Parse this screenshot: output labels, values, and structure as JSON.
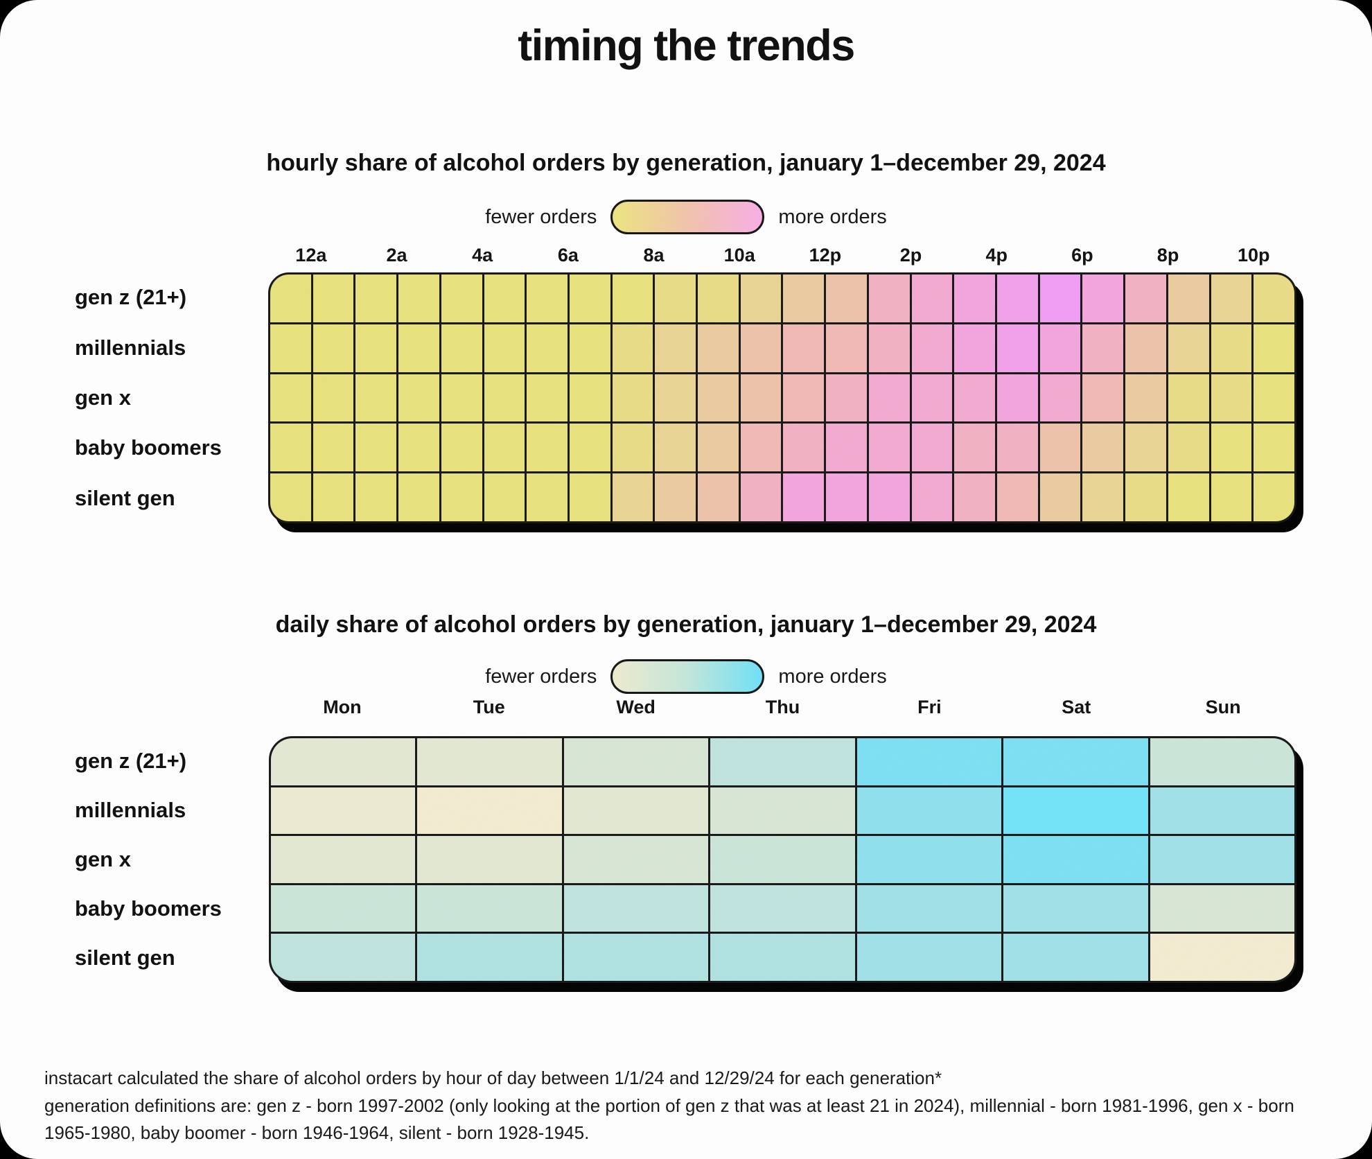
{
  "page": {
    "title": "timing the trends",
    "background_color": "#000000",
    "card_color": "#ffffff"
  },
  "chart_data": [
    {
      "id": "hourly",
      "type": "heatmap",
      "subtitle": "hourly share of alcohol orders by generation, january 1–december 29, 2024",
      "legend": {
        "left_label": "fewer orders",
        "right_label": "more orders",
        "gradient": [
          "#ece57f",
          "#f1c3ab",
          "#f9aee6"
        ]
      },
      "col_tick_labels": [
        "12a",
        "2a",
        "4a",
        "6a",
        "8a",
        "10a",
        "12p",
        "2p",
        "4p",
        "6p",
        "8p",
        "10p"
      ],
      "n_columns": 24,
      "rows": [
        "gen z (21+)",
        "millennials",
        "gen x",
        "baby boomers",
        "silent gen"
      ],
      "color_scale_low_to_high": [
        "#e7e27c",
        "#e8dc86",
        "#e9d493",
        "#ebcb9f",
        "#edc2aa",
        "#f0b9b4",
        "#f2b1c2",
        "#f3aad0",
        "#f3a5de",
        "#f2a0ea",
        "#f09df4"
      ],
      "cells": [
        [
          "#e7e27c",
          "#e7e27c",
          "#e7e27c",
          "#e7e27c",
          "#e7e27c",
          "#e7e27c",
          "#e7e27c",
          "#e7e27c",
          "#e7e27c",
          "#e8dc86",
          "#e8dc86",
          "#e9d493",
          "#ebcb9f",
          "#edc2aa",
          "#f2b1c2",
          "#f3aad0",
          "#f3a5de",
          "#f2a0ea",
          "#f09df4",
          "#f3a5de",
          "#f2b1c2",
          "#ebcb9f",
          "#e9d493",
          "#e8dc86"
        ],
        [
          "#e7e27c",
          "#e7e27c",
          "#e7e27c",
          "#e7e27c",
          "#e7e27c",
          "#e7e27c",
          "#e7e27c",
          "#e7e27c",
          "#e8dc86",
          "#e9d493",
          "#ebcb9f",
          "#edc2aa",
          "#f0b9b4",
          "#f0b9b4",
          "#f2b1c2",
          "#f3aad0",
          "#f3a5de",
          "#f2a0ea",
          "#f3a5de",
          "#f2b1c2",
          "#edc2aa",
          "#e9d493",
          "#e8dc86",
          "#e7e27c"
        ],
        [
          "#e7e27c",
          "#e7e27c",
          "#e7e27c",
          "#e7e27c",
          "#e7e27c",
          "#e7e27c",
          "#e7e27c",
          "#e7e27c",
          "#e8dc86",
          "#e9d493",
          "#ebcb9f",
          "#edc2aa",
          "#f0b9b4",
          "#f2b1c2",
          "#f3aad0",
          "#f3aad0",
          "#f3aad0",
          "#f3a5de",
          "#f3aad0",
          "#f0b9b4",
          "#ebcb9f",
          "#e8dc86",
          "#e8dc86",
          "#e7e27c"
        ],
        [
          "#e7e27c",
          "#e7e27c",
          "#e7e27c",
          "#e7e27c",
          "#e7e27c",
          "#e7e27c",
          "#e7e27c",
          "#e7e27c",
          "#e8dc86",
          "#e9d493",
          "#ebcb9f",
          "#f0b9b4",
          "#f2b1c2",
          "#f3aad0",
          "#f3aad0",
          "#f3aad0",
          "#f2b1c2",
          "#f2b1c2",
          "#edc2aa",
          "#ebcb9f",
          "#e9d493",
          "#e8dc86",
          "#e7e27c",
          "#e7e27c"
        ],
        [
          "#e7e27c",
          "#e7e27c",
          "#e7e27c",
          "#e7e27c",
          "#e7e27c",
          "#e7e27c",
          "#e7e27c",
          "#e7e27c",
          "#e9d493",
          "#ebcb9f",
          "#edc2aa",
          "#f2b1c2",
          "#f3a5de",
          "#f3a5de",
          "#f3a5de",
          "#f3aad0",
          "#f2b1c2",
          "#f0b9b4",
          "#ebcb9f",
          "#e9d493",
          "#e8dc86",
          "#e7e27c",
          "#e7e27c",
          "#e7e27c"
        ]
      ]
    },
    {
      "id": "daily",
      "type": "heatmap",
      "subtitle": "daily share of alcohol orders by generation, january 1–december 29, 2024",
      "legend": {
        "left_label": "fewer orders",
        "right_label": "more orders",
        "gradient": [
          "#eeebce",
          "#c3e6da",
          "#6ee1f7"
        ]
      },
      "col_tick_labels": [
        "Mon",
        "Tue",
        "Wed",
        "Thu",
        "Fri",
        "Sat",
        "Sun"
      ],
      "n_columns": 7,
      "rows": [
        "gen z (21+)",
        "millennials",
        "gen x",
        "baby boomers",
        "silent gen"
      ],
      "color_scale_low_to_high": [
        "#f3ecd1",
        "#ebead2",
        "#e3e8d3",
        "#d8e6d5",
        "#cbe5d9",
        "#bfe3de",
        "#b0e2e2",
        "#9fe1e7",
        "#8fe0ed",
        "#7de0f3",
        "#72e3f8"
      ],
      "cells": [
        [
          "#e3e8d3",
          "#e3e8d3",
          "#d8e6d5",
          "#bfe3de",
          "#7de0f3",
          "#7de0f3",
          "#cbe5d9"
        ],
        [
          "#ebead2",
          "#f3ecd1",
          "#e3e8d3",
          "#d8e6d5",
          "#8fe0ed",
          "#72e3f8",
          "#9fe1e7"
        ],
        [
          "#e3e8d3",
          "#e3e8d3",
          "#d8e6d5",
          "#cbe5d9",
          "#8fe0ed",
          "#7de0f3",
          "#9fe1e7"
        ],
        [
          "#cbe5d9",
          "#cbe5d9",
          "#bfe3de",
          "#bfe3de",
          "#9fe1e7",
          "#9fe1e7",
          "#d8e6d5"
        ],
        [
          "#bfe3de",
          "#b0e2e2",
          "#b0e2e2",
          "#b0e2e2",
          "#9fe1e7",
          "#9fe1e7",
          "#f3ecd1"
        ]
      ]
    }
  ],
  "footnote": {
    "line1": "instacart calculated the share of alcohol orders by hour of day between 1/1/24 and 12/29/24 for each generation*",
    "line2": "generation definitions are: gen z - born 1997-2002 (only looking at the portion of gen z that was at least 21 in 2024), millennial - born 1981-1996, gen x - born 1965-1980, baby boomer - born 1946-1964, silent - born 1928-1945."
  }
}
